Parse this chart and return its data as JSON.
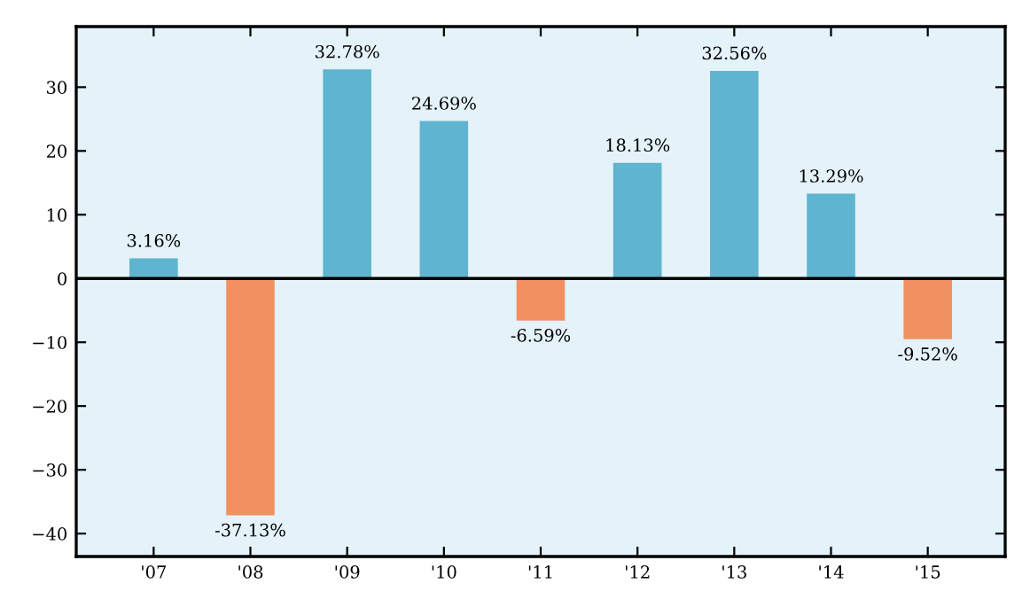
{
  "chart_data": {
    "type": "bar",
    "categories": [
      "'07",
      "'08",
      "'09",
      "'10",
      "'11",
      "'12",
      "'13",
      "'14",
      "'15"
    ],
    "values": [
      3.16,
      -37.13,
      32.78,
      24.69,
      -6.59,
      18.13,
      32.56,
      13.29,
      -9.52
    ],
    "colors": [
      "#5fb4cf",
      "#f0915f",
      "#5fb4cf",
      "#5fb4cf",
      "#f0915f",
      "#5fb4cf",
      "#5fb4cf",
      "#5fb4cf",
      "#f0915f"
    ],
    "value_labels": [
      "3.16%",
      "-37.13%",
      "32.78%",
      "24.69%",
      "-6.59%",
      "18.13%",
      "32.56%",
      "13.29%",
      "-9.52%"
    ],
    "ylim": [
      -43.6,
      39.5
    ],
    "yticks": [
      {
        "value": -40,
        "label": "−40"
      },
      {
        "value": -30,
        "label": "−30"
      },
      {
        "value": -20,
        "label": "−20"
      },
      {
        "value": -10,
        "label": "−10"
      },
      0,
      10,
      20,
      30
    ],
    "ref_lines": [
      {
        "axis": "y",
        "value": 0,
        "label": null,
        "color": "#000000"
      }
    ],
    "grid": false
  }
}
